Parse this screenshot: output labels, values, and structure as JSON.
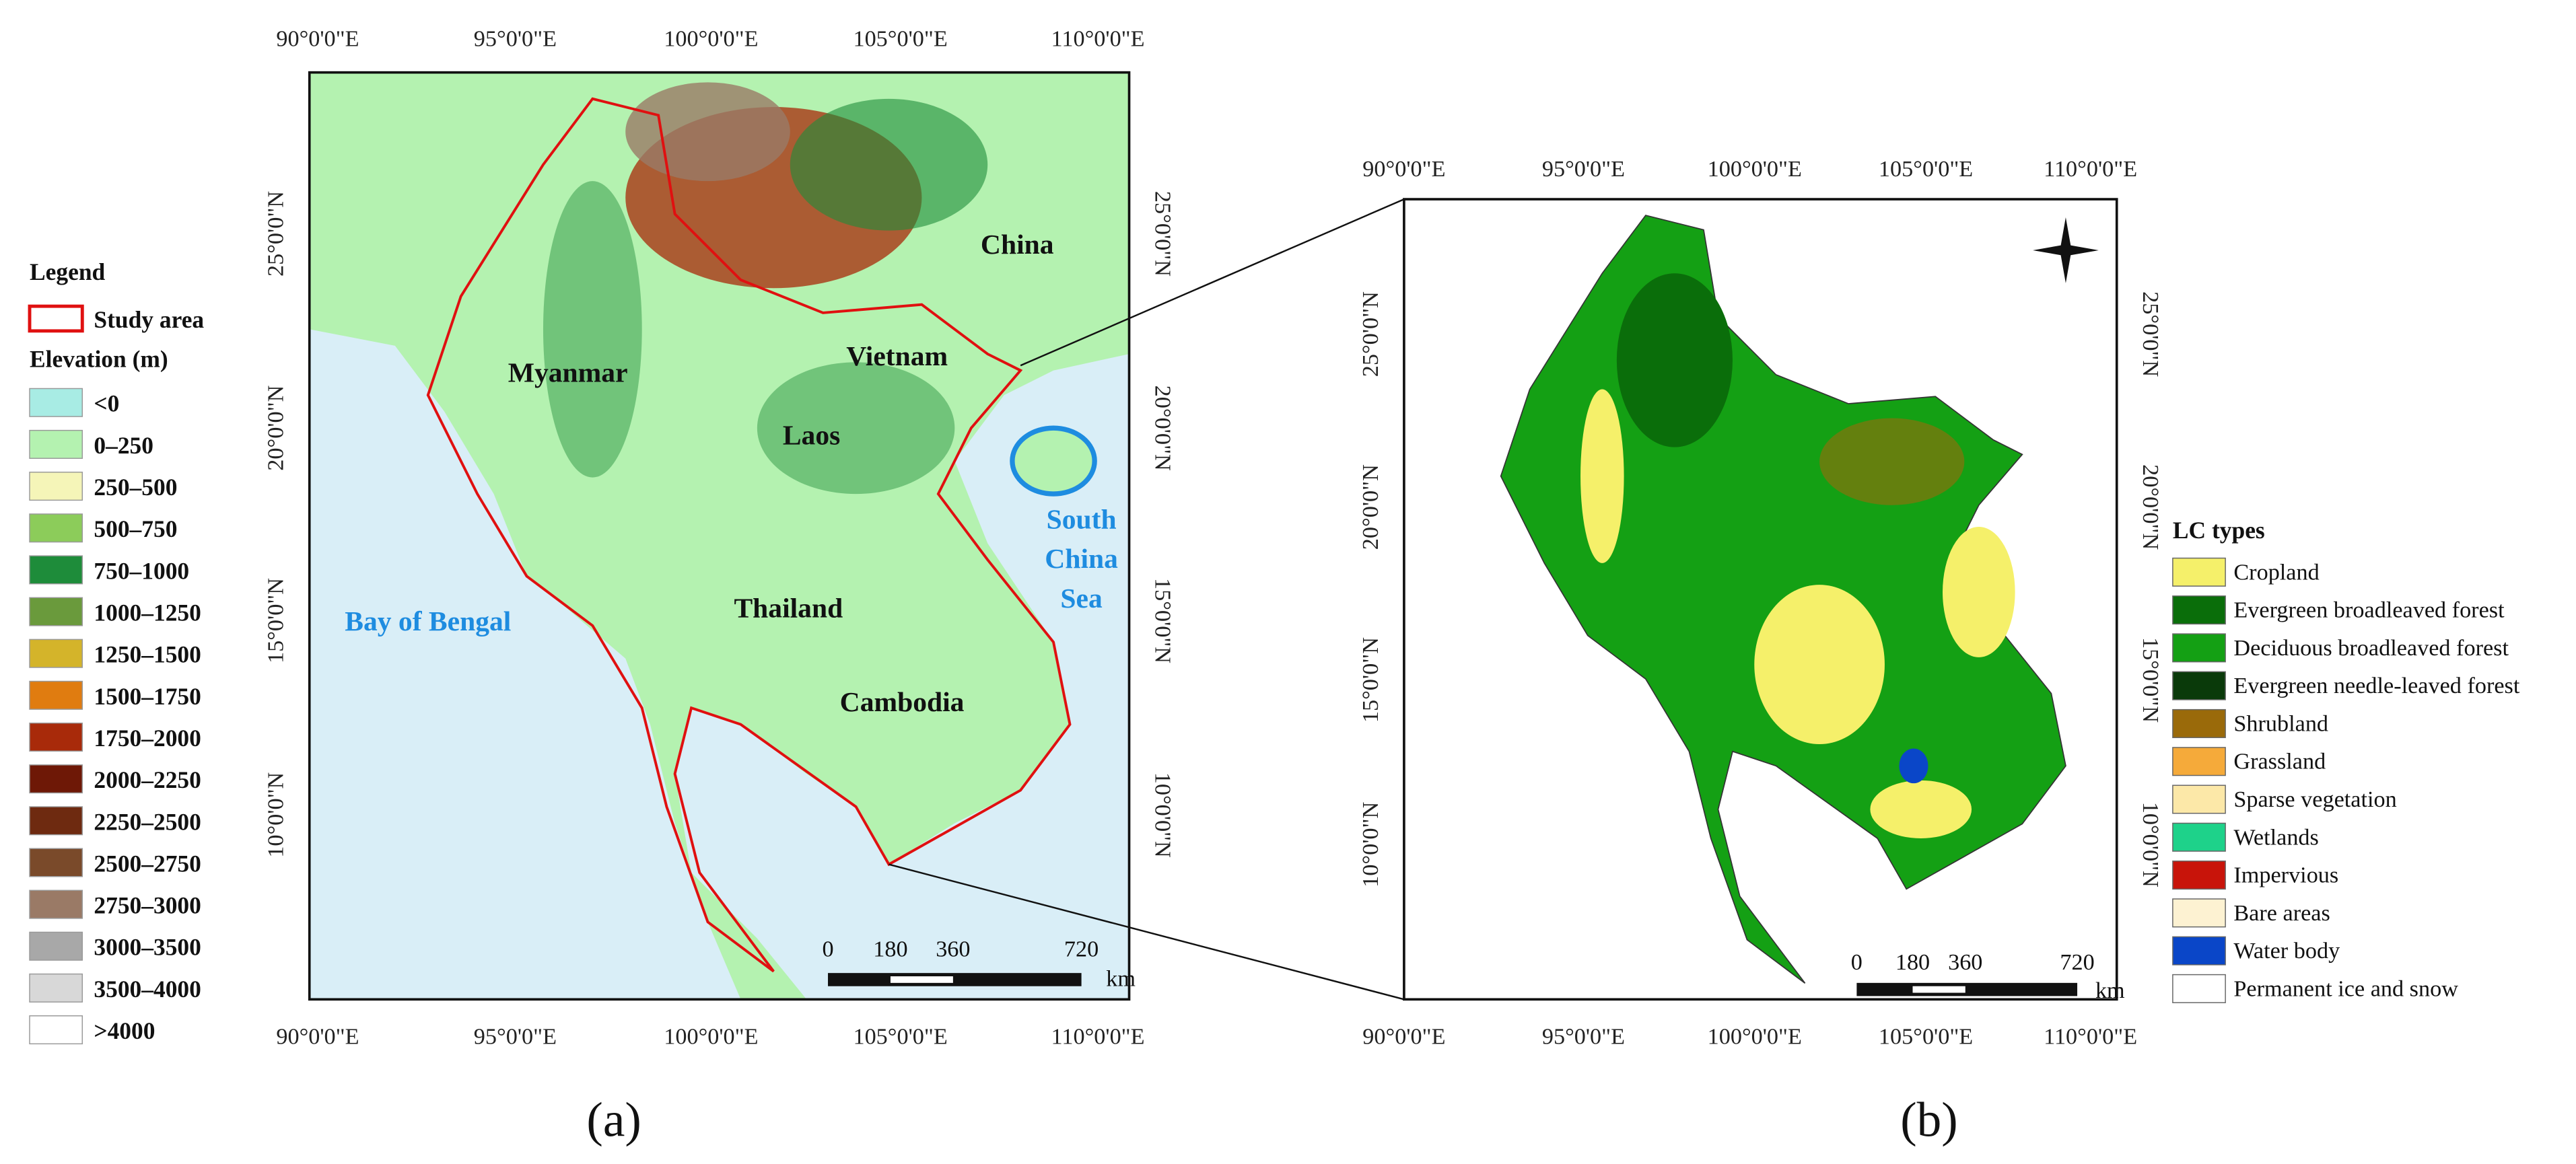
{
  "panel_a": {
    "label": "(a)",
    "lon_labels": [
      "90°0'0\"E",
      "95°0'0\"E",
      "100°0'0\"E",
      "105°0'0\"E",
      "110°0'0\"E"
    ],
    "lat_labels": [
      "25°0'0\"N",
      "20°0'0\"N",
      "15°0'0\"N",
      "10°0'0\"N"
    ],
    "places": {
      "china": "China",
      "myanmar": "Myanmar",
      "vietnam": "Vietnam",
      "laos": "Laos",
      "thailand": "Thailand",
      "cambodia": "Cambodia",
      "bay": "Bay of Bengal",
      "scs": [
        "South",
        "China",
        "Sea"
      ]
    },
    "scale_bar": {
      "ticks": [
        "0",
        "180",
        "360",
        "720"
      ],
      "unit": "km"
    },
    "legend": {
      "title": "Legend",
      "study_area": "Study area",
      "elevation_title": "Elevation (m)",
      "classes": [
        {
          "label": "<0",
          "color": "#a8ece4"
        },
        {
          "label": "0–250",
          "color": "#b4f2b0"
        },
        {
          "label": "250–500",
          "color": "#f5f5b8"
        },
        {
          "label": "500–750",
          "color": "#8ccc5a"
        },
        {
          "label": "750–1000",
          "color": "#1e8c3a"
        },
        {
          "label": "1000–1250",
          "color": "#6a9a3c"
        },
        {
          "label": "1250–1500",
          "color": "#d4b42a"
        },
        {
          "label": "1500–1750",
          "color": "#e07c10"
        },
        {
          "label": "1750–2000",
          "color": "#a82a0a"
        },
        {
          "label": "2000–2250",
          "color": "#6e1806"
        },
        {
          "label": "2250–2500",
          "color": "#6e2a10"
        },
        {
          "label": "2500–2750",
          "color": "#7a4a2a"
        },
        {
          "label": "2750–3000",
          "color": "#9a7a66"
        },
        {
          "label": "3000–3500",
          "color": "#a8a8a8"
        },
        {
          "label": "3500–4000",
          "color": "#d8d8d8"
        },
        {
          "label": ">4000",
          "color": "#ffffff"
        }
      ]
    }
  },
  "panel_b": {
    "label": "(b)",
    "lon_labels": [
      "90°0'0\"E",
      "95°0'0\"E",
      "100°0'0\"E",
      "105°0'0\"E",
      "110°0'0\"E"
    ],
    "lat_labels": [
      "25°0'0\"N",
      "20°0'0\"N",
      "15°0'0\"N",
      "10°0'0\"N"
    ],
    "scale_bar": {
      "ticks": [
        "0",
        "180",
        "360",
        "720"
      ],
      "unit": "km"
    },
    "legend": {
      "title": "LC types",
      "classes": [
        {
          "label": "Cropland",
          "color": "#f5f06a"
        },
        {
          "label": "Evergreen broadleaved forest",
          "color": "#0a6e0a"
        },
        {
          "label": "Deciduous broadleaved forest",
          "color": "#14a014"
        },
        {
          "label": "Evergreen needle-leaved forest",
          "color": "#0a3a0a"
        },
        {
          "label": "Shrubland",
          "color": "#9a6a0a"
        },
        {
          "label": "Grassland",
          "color": "#f5aa3a"
        },
        {
          "label": "Sparse vegetation",
          "color": "#fce8a8"
        },
        {
          "label": "Wetlands",
          "color": "#1ed28a"
        },
        {
          "label": "Impervious",
          "color": "#c8140a"
        },
        {
          "label": "Bare areas",
          "color": "#fdf2d2"
        },
        {
          "label": "Water body",
          "color": "#0a46c8"
        },
        {
          "label": "Permanent ice and snow",
          "color": "#ffffff"
        }
      ]
    }
  }
}
